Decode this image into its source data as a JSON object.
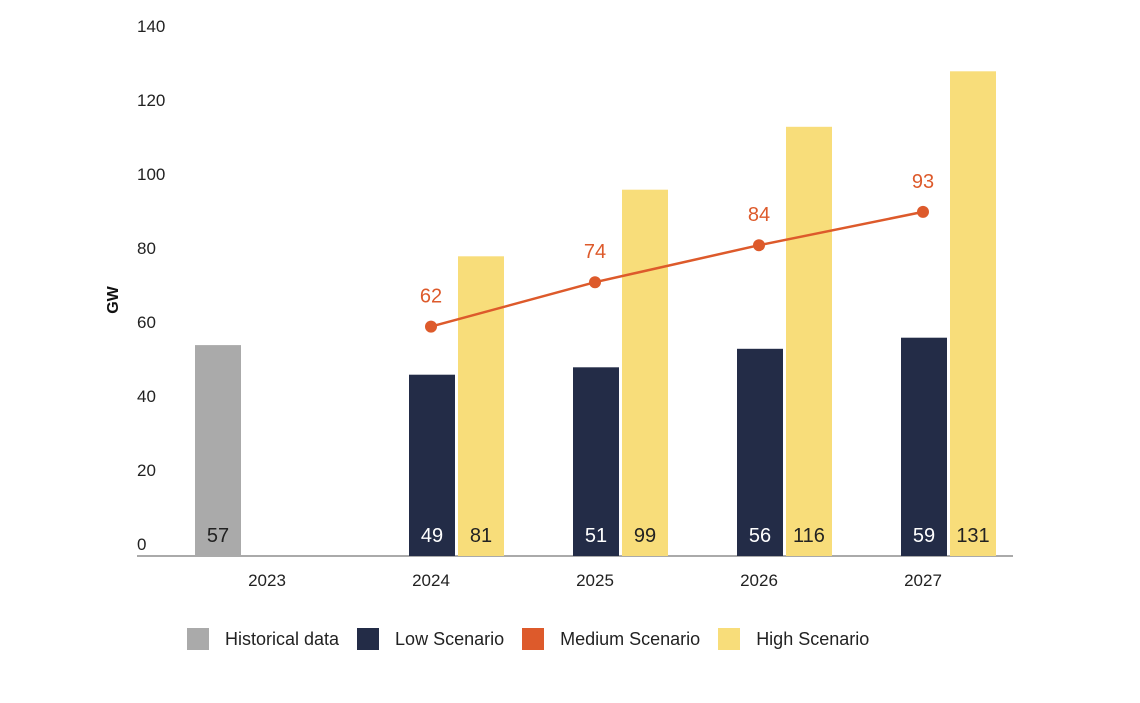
{
  "chart_data": {
    "type": "bar",
    "ylabel": "GW",
    "xlabel": "",
    "ylim": [
      0,
      140
    ],
    "yticks": [
      0,
      20,
      40,
      60,
      80,
      100,
      120,
      140
    ],
    "grid": false,
    "legend_position": "bottom",
    "categories": [
      "2023",
      "2024",
      "2025",
      "2026",
      "2027"
    ],
    "series": [
      {
        "name": "Historical data",
        "type": "bar",
        "color": "#aaaaaa",
        "values": [
          57,
          null,
          null,
          null,
          null
        ]
      },
      {
        "name": "Low Scenario",
        "type": "bar",
        "color": "#232c47",
        "values": [
          null,
          49,
          51,
          56,
          59
        ]
      },
      {
        "name": "Medium Scenario",
        "type": "line",
        "color": "#dd5a2b",
        "values": [
          null,
          62,
          74,
          84,
          93
        ]
      },
      {
        "name": "High Scenario",
        "type": "bar",
        "color": "#f8dd7a",
        "values": [
          null,
          81,
          99,
          116,
          131
        ]
      }
    ]
  }
}
